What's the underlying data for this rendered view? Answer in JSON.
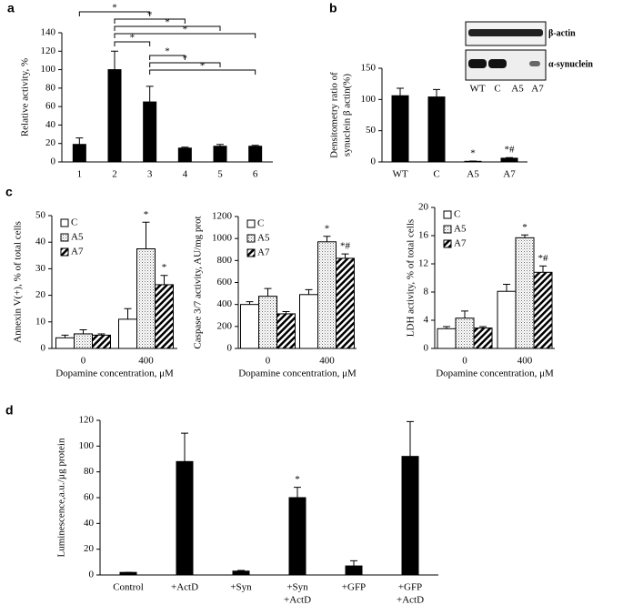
{
  "chart_data": [
    {
      "type": "bar",
      "panel_label": "a",
      "ylabel": [
        "Relative activity, %"
      ],
      "categories": [
        "1",
        "2",
        "3",
        "4",
        "5",
        "6"
      ],
      "values": [
        19,
        100,
        65,
        15,
        17,
        17
      ],
      "errors": [
        7,
        20,
        17,
        1,
        2,
        1
      ],
      "color": "#000000",
      "ylim": [
        0,
        140
      ],
      "yticks": [
        0,
        20,
        40,
        60,
        80,
        100,
        120,
        140
      ],
      "brackets": [
        {
          "pair": [
            0,
            2
          ],
          "label": "*"
        },
        {
          "pair": [
            1,
            3
          ],
          "label": "*"
        },
        {
          "pair": [
            1,
            4
          ],
          "label": "*"
        },
        {
          "pair": [
            1,
            5
          ],
          "label": "*"
        },
        {
          "pair": [
            1,
            2
          ],
          "label": "*"
        },
        {
          "pair": [
            2,
            3
          ],
          "label": "*"
        },
        {
          "pair": [
            2,
            4
          ],
          "label": "*"
        },
        {
          "pair": [
            2,
            5
          ],
          "label": "*"
        }
      ]
    },
    {
      "type": "bar",
      "panel_label": "b",
      "ylabel": [
        "Densitometry ratio of",
        "synuclein β actin(%)"
      ],
      "categories": [
        "WT",
        "C",
        "A5",
        "A7"
      ],
      "values": [
        106,
        104,
        1,
        6
      ],
      "errors": [
        12,
        12,
        0.5,
        1
      ],
      "color": "#000000",
      "ylim": [
        0,
        150
      ],
      "yticks": [
        0,
        50,
        100,
        150
      ],
      "annotations": [
        {
          "category": 2,
          "text": "*"
        },
        {
          "category": 3,
          "text": "*#"
        }
      ],
      "blot": {
        "bands": [
          "β-actin",
          "α-synuclein"
        ],
        "lanes": [
          "WT",
          "C",
          "A5",
          "A7"
        ]
      }
    },
    {
      "type": "grouped_bar",
      "panel_label": "c",
      "ylabel": [
        "Annexin V(+), % of total cells"
      ],
      "xlabel": "Dopamine concentration, μM",
      "categories": [
        "0",
        "400"
      ],
      "ylim": [
        0,
        50
      ],
      "yticks": [
        0,
        10,
        20,
        30,
        40,
        50
      ],
      "series": [
        {
          "name": "C",
          "fill": "white",
          "values": [
            4,
            11
          ],
          "errors": [
            1,
            4
          ]
        },
        {
          "name": "A5",
          "fill": "dots",
          "values": [
            5.5,
            37.5
          ],
          "errors": [
            1.5,
            10
          ]
        },
        {
          "name": "A7",
          "fill": "hatch",
          "values": [
            5,
            24
          ],
          "errors": [
            0.5,
            3.5
          ]
        }
      ],
      "annotations": [
        {
          "series": 1,
          "category": 1,
          "text": "*"
        },
        {
          "series": 2,
          "category": 1,
          "text": "*"
        }
      ]
    },
    {
      "type": "grouped_bar",
      "ylabel": [
        "Caspase 3/7 activity, AU/mg prot"
      ],
      "xlabel": "Dopamine concentration, μM",
      "categories": [
        "0",
        "400"
      ],
      "ylim": [
        0,
        1200
      ],
      "yticks": [
        0,
        200,
        400,
        600,
        800,
        1000,
        1200
      ],
      "series": [
        {
          "name": "C",
          "fill": "white",
          "values": [
            400,
            490
          ],
          "errors": [
            25,
            45
          ]
        },
        {
          "name": "A5",
          "fill": "dots",
          "values": [
            475,
            970
          ],
          "errors": [
            70,
            50
          ]
        },
        {
          "name": "A7",
          "fill": "hatch",
          "values": [
            315,
            820
          ],
          "errors": [
            20,
            40
          ]
        }
      ],
      "annotations": [
        {
          "series": 1,
          "category": 1,
          "text": "*"
        },
        {
          "series": 2,
          "category": 1,
          "text": "*#"
        }
      ]
    },
    {
      "type": "grouped_bar",
      "ylabel": [
        "LDH activity,  % of total cells"
      ],
      "xlabel": "Dopamine concentration, μM",
      "categories": [
        "0",
        "400"
      ],
      "ylim": [
        0,
        20
      ],
      "yticks": [
        0,
        4,
        8,
        12,
        16,
        20
      ],
      "series": [
        {
          "name": "C",
          "fill": "white",
          "values": [
            2.8,
            8.1
          ],
          "errors": [
            0.3,
            1
          ]
        },
        {
          "name": "A5",
          "fill": "dots",
          "values": [
            4.3,
            15.7
          ],
          "errors": [
            1,
            0.4
          ]
        },
        {
          "name": "A7",
          "fill": "hatch",
          "values": [
            2.9,
            10.8
          ],
          "errors": [
            0.2,
            0.9
          ]
        }
      ],
      "annotations": [
        {
          "series": 1,
          "category": 1,
          "text": "*"
        },
        {
          "series": 2,
          "category": 1,
          "text": "*#"
        }
      ]
    },
    {
      "type": "bar",
      "panel_label": "d",
      "ylabel": [
        "Luminescence,a.u./µg protein"
      ],
      "categories": [
        [
          "Control"
        ],
        [
          "+ActD"
        ],
        [
          "+Syn"
        ],
        [
          "+Syn",
          "+ActD"
        ],
        [
          "+GFP"
        ],
        [
          "+GFP",
          "+ActD"
        ]
      ],
      "values": [
        2,
        88,
        3,
        60,
        7,
        92
      ],
      "errors": [
        0,
        22,
        0.5,
        8,
        4,
        27
      ],
      "color": "#000000",
      "ylim": [
        0,
        120
      ],
      "yticks": [
        0,
        20,
        40,
        60,
        80,
        100,
        120
      ],
      "annotations": [
        {
          "category": 3,
          "text": "*"
        }
      ]
    }
  ]
}
